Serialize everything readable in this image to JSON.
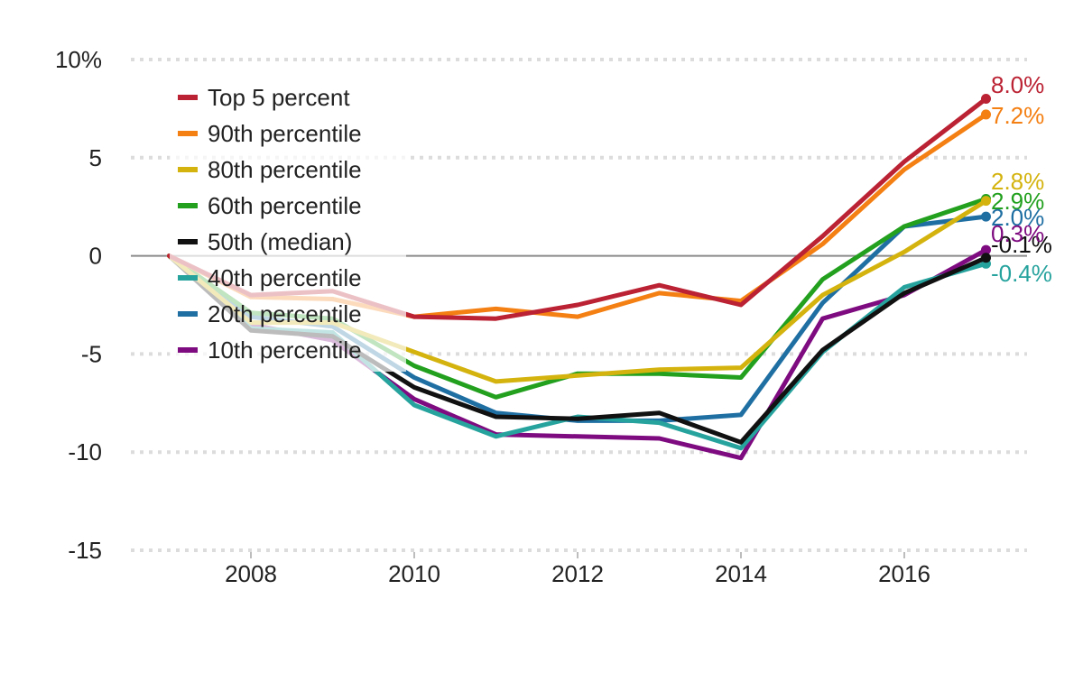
{
  "chart_data": {
    "type": "line",
    "x": [
      2007,
      2008,
      2009,
      2010,
      2011,
      2012,
      2013,
      2014,
      2015,
      2016,
      2017
    ],
    "xticks": [
      2008,
      2010,
      2012,
      2014,
      2016
    ],
    "xtick_labels": [
      "2008",
      "2010",
      "2012",
      "2014",
      "2016"
    ],
    "yticks": [
      10,
      5,
      0,
      -5,
      -10,
      -15
    ],
    "ytick_labels": [
      "10%",
      "5",
      "0",
      "-5",
      "-10",
      "-15"
    ],
    "ylim": [
      -15,
      10
    ],
    "xlim": [
      2006.5,
      2017.5
    ],
    "grid": "horizontal dotted",
    "legend_position": "top-left",
    "title": "",
    "xlabel": "",
    "ylabel": "",
    "series": [
      {
        "name": "Top 5 percent",
        "color": "#bb2233",
        "values": [
          0,
          -2.0,
          -1.8,
          -3.1,
          -3.2,
          -2.5,
          -1.5,
          -2.5,
          1.0,
          4.8,
          8.0
        ],
        "end_label": "8.0%"
      },
      {
        "name": "90th percentile",
        "color": "#f47f12",
        "values": [
          0,
          -2.1,
          -2.2,
          -3.1,
          -2.7,
          -3.1,
          -1.9,
          -2.3,
          0.6,
          4.4,
          7.2
        ],
        "end_label": "7.2%"
      },
      {
        "name": "80th percentile",
        "color": "#d4b30e",
        "values": [
          0,
          -3.4,
          -3.4,
          -4.9,
          -6.4,
          -6.1,
          -5.8,
          -5.7,
          -2.0,
          0.2,
          2.8
        ],
        "end_label": "2.8%"
      },
      {
        "name": "60th percentile",
        "color": "#22a01e",
        "values": [
          0,
          -2.9,
          -3.2,
          -5.6,
          -7.2,
          -6.0,
          -6.0,
          -6.2,
          -1.2,
          1.5,
          2.9
        ],
        "end_label": "2.9%"
      },
      {
        "name": "50th (median)",
        "color": "#111111",
        "values": [
          0,
          -3.8,
          -4.1,
          -6.7,
          -8.2,
          -8.3,
          -8.0,
          -9.5,
          -4.8,
          -1.9,
          -0.1
        ],
        "end_label": "-0.1%"
      },
      {
        "name": "40th percentile",
        "color": "#27a39e",
        "values": [
          0,
          -3.7,
          -3.9,
          -7.6,
          -9.2,
          -8.2,
          -8.5,
          -9.8,
          -4.9,
          -1.6,
          -0.4
        ],
        "end_label": "-0.4%"
      },
      {
        "name": "20th percentile",
        "color": "#1f6fa3",
        "values": [
          0,
          -3.1,
          -3.6,
          -6.2,
          -8.0,
          -8.4,
          -8.4,
          -8.1,
          -2.4,
          1.5,
          2.0
        ],
        "end_label": "2.0%"
      },
      {
        "name": "10th percentile",
        "color": "#7e0b80",
        "values": [
          0,
          -3.5,
          -4.3,
          -7.3,
          -9.1,
          -9.2,
          -9.3,
          -10.3,
          -3.2,
          -2.0,
          0.3
        ],
        "end_label": "0.3%"
      }
    ]
  }
}
